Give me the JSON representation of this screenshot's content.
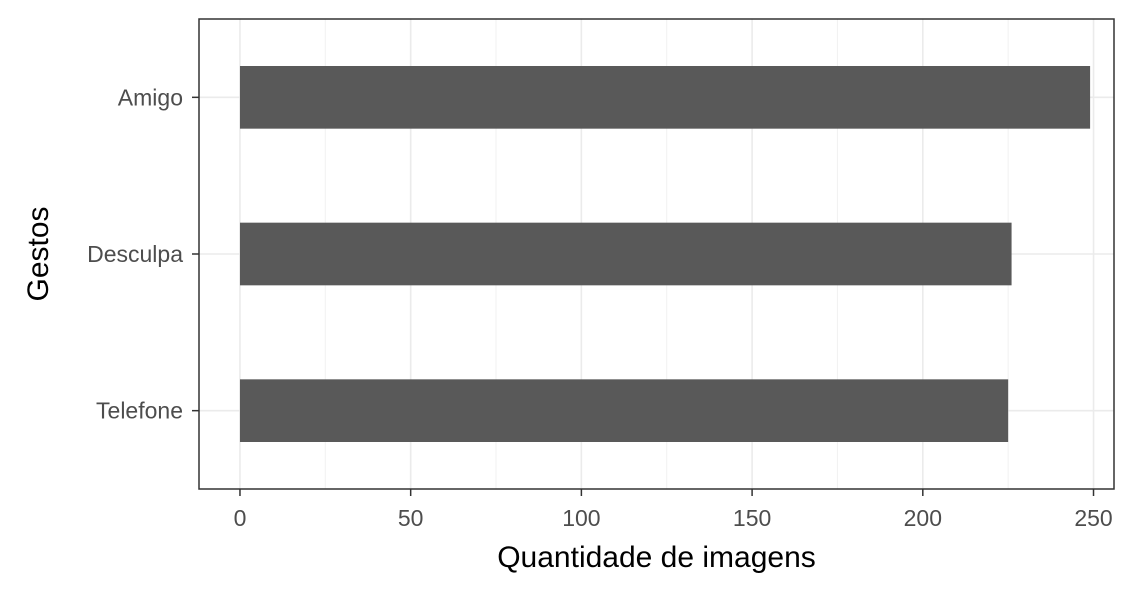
{
  "chart_data": {
    "type": "bar",
    "orientation": "horizontal",
    "categories": [
      "Amigo",
      "Desculpa",
      "Telefone"
    ],
    "values": [
      249,
      226,
      225
    ],
    "title": "",
    "xlabel": "Quantidade de imagens",
    "ylabel": "Gestos",
    "xlim": [
      -12,
      256
    ],
    "xticks": [
      0,
      50,
      100,
      150,
      200,
      250
    ],
    "grid": true,
    "legend": "none",
    "bar_color": "#595959"
  }
}
